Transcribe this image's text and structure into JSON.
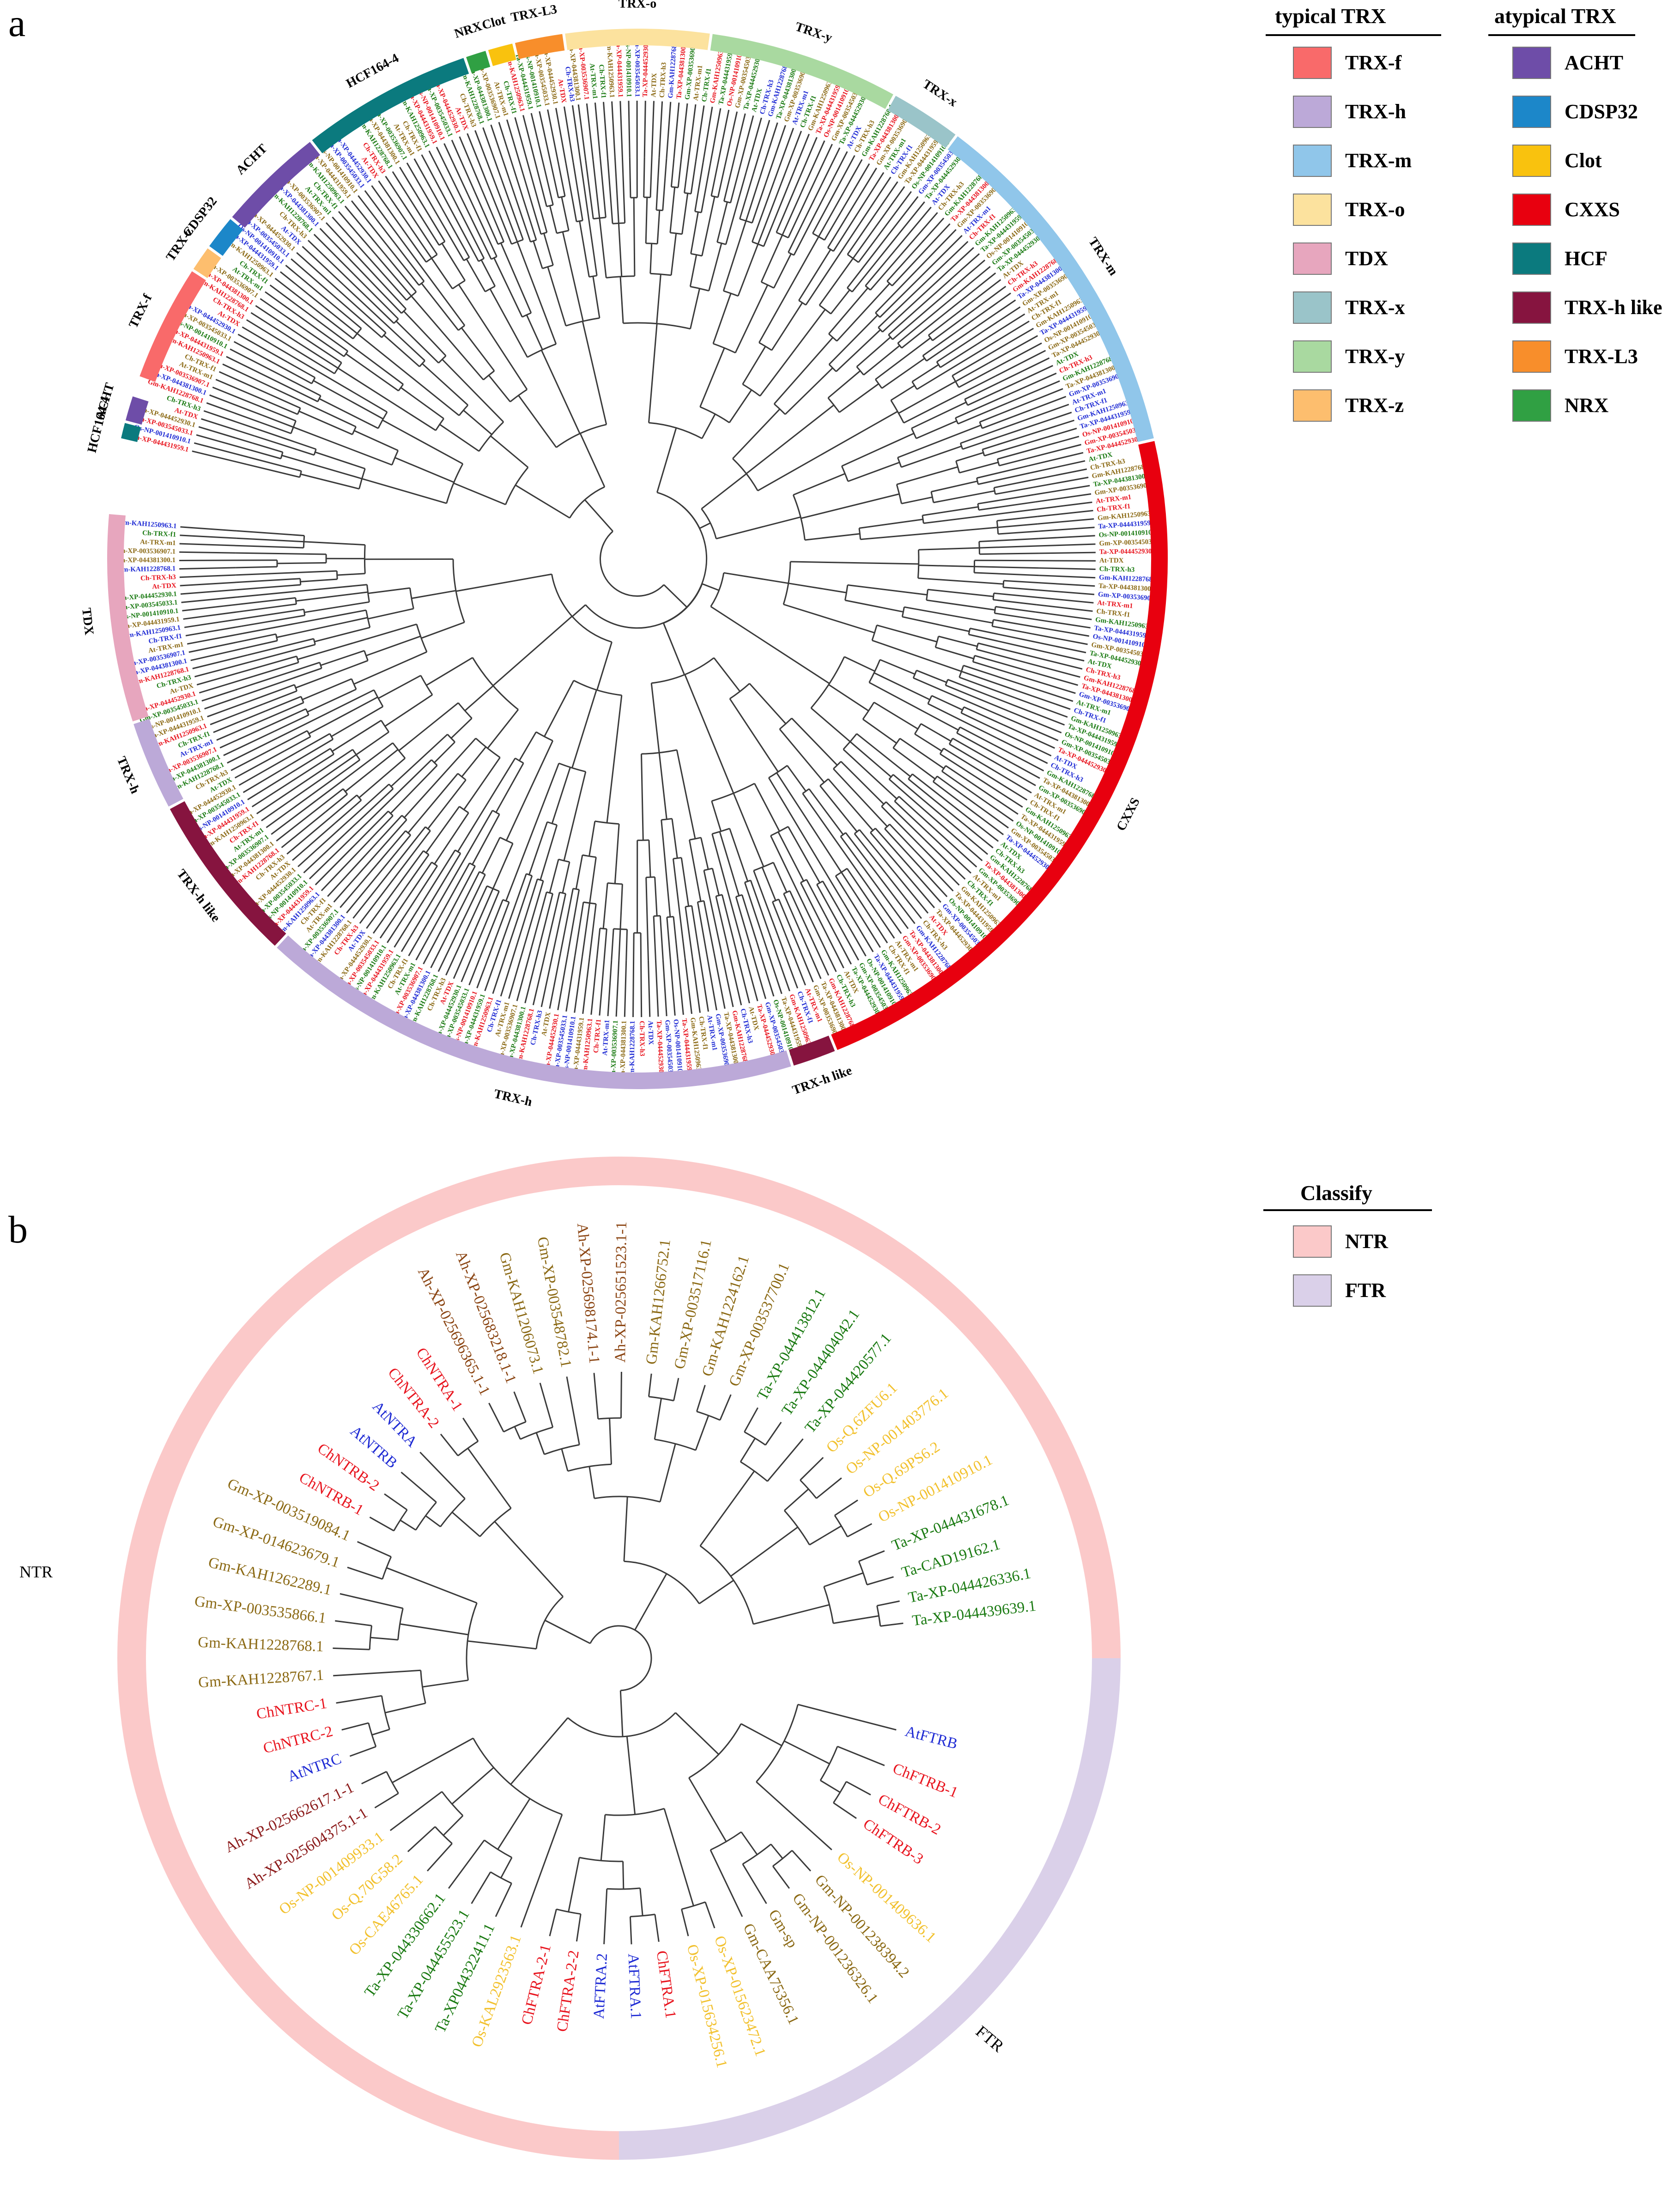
{
  "panels": {
    "a": {
      "letter": "a",
      "legend": {
        "typical": {
          "title": "typical TRX",
          "items": [
            {
              "label": "TRX-f",
              "color": "#F96A6A"
            },
            {
              "label": "TRX-h",
              "color": "#BCA9D8"
            },
            {
              "label": "TRX-m",
              "color": "#90C6EA"
            },
            {
              "label": "TRX-o",
              "color": "#FCE29E"
            },
            {
              "label": "TDX",
              "color": "#E7A6BE"
            },
            {
              "label": "TRX-x",
              "color": "#9AC4C9"
            },
            {
              "label": "TRX-y",
              "color": "#A9D9A0"
            },
            {
              "label": "TRX-z",
              "color": "#FDBE6E"
            }
          ]
        },
        "atypical": {
          "title": "atypical TRX",
          "items": [
            {
              "label": "ACHT",
              "color": "#6E4DA8"
            },
            {
              "label": "CDSP32",
              "color": "#1C87C9"
            },
            {
              "label": "Clot",
              "color": "#F9C20E"
            },
            {
              "label": "CXXS",
              "color": "#E8000F"
            },
            {
              "label": "HCF",
              "color": "#0B7A7E"
            },
            {
              "label": "TRX-h like",
              "color": "#86143F"
            },
            {
              "label": "TRX-L3",
              "color": "#F88E2B"
            },
            {
              "label": "NRX",
              "color": "#30A043"
            }
          ]
        }
      },
      "ring": [
        {
          "label": "TRX-o",
          "start": -8,
          "end": 8,
          "color": "#FCE29E"
        },
        {
          "label": "TRX-y",
          "start": 8,
          "end": 29,
          "color": "#A9D9A0"
        },
        {
          "label": "TRX-x",
          "start": 29,
          "end": 37,
          "color": "#9AC4C9"
        },
        {
          "label": "TRX-m",
          "start": 37,
          "end": 77,
          "color": "#90C6EA"
        },
        {
          "label": "CXXS",
          "start": 77,
          "end": 158,
          "color": "#E8000F"
        },
        {
          "label": "TRX-h like",
          "start": 158,
          "end": 163,
          "color": "#86143F"
        },
        {
          "label": "TRX-h",
          "start": 163,
          "end": 223,
          "color": "#BCA9D8"
        },
        {
          "label": "TRX-h like",
          "start": 223,
          "end": 242,
          "color": "#86143F"
        },
        {
          "label": "TRX-h",
          "start": 242,
          "end": 252,
          "color": "#BCA9D8"
        },
        {
          "label": "TDX",
          "start": 252,
          "end": 275,
          "color": "#E7A6BE"
        },
        {
          "label": "HCF164-4",
          "start": 283,
          "end": 285,
          "color": "#0B7A7E"
        },
        {
          "label": "ACHT",
          "start": 285,
          "end": 288,
          "color": "#6E4DA8"
        },
        {
          "label": "TRX-f",
          "start": 290,
          "end": 303,
          "color": "#F96A6A"
        },
        {
          "label": "TRX-z",
          "start": 303,
          "end": 306,
          "color": "#FDBE6E"
        },
        {
          "label": "CDSP32",
          "start": 306,
          "end": 310,
          "color": "#1C87C9"
        },
        {
          "label": "ACHT",
          "start": 310,
          "end": 322,
          "color": "#6E4DA8"
        },
        {
          "label": "HCF164-4",
          "start": 322,
          "end": 341,
          "color": "#0B7A7E"
        },
        {
          "label": "NRX",
          "start": 341,
          "end": 343.5,
          "color": "#30A043"
        },
        {
          "label": "Clot",
          "start": 343.5,
          "end": 346.5,
          "color": "#F9C20E"
        },
        {
          "label": "TRX-L3",
          "start": 346.5,
          "end": 352,
          "color": "#F88E2B"
        }
      ],
      "leaf_names": [
        "Ta-XP-044381300.1",
        "Gm-XP-003536907.1",
        "At-TRX-m1",
        "Ch-TRX-f1",
        "Gm-KAH1250963.1",
        "Ta-XP-044431959.1",
        "Os-NP-001410910.1",
        "Gm-XP-003545033.1",
        "Ta-XP-044452930.1",
        "At-TDX",
        "Ch-TRX-h3",
        "Gm-KAH1228768.1"
      ]
    },
    "b": {
      "letter": "b",
      "legend": {
        "title": "Classify",
        "items": [
          {
            "label": "NTR",
            "color": "#FBC9C9"
          },
          {
            "label": "FTR",
            "color": "#DAD0E9"
          }
        ]
      },
      "ring": [
        {
          "label": "NTR",
          "start": -180,
          "end": 90,
          "color": "#FBC9C9"
        },
        {
          "label": "FTR",
          "start": 90,
          "end": 180,
          "color": "#DAD0E9"
        }
      ],
      "leaves": [
        {
          "name": "Ta-XP-044439639.1",
          "angle": 83,
          "color": "#1A7A12"
        },
        {
          "name": "Ta-XP-044426336.1",
          "angle": 78.5,
          "color": "#1A7A12"
        },
        {
          "name": "Ta-CAD19162.1",
          "angle": 73.5,
          "color": "#1A7A12"
        },
        {
          "name": "Ta-XP-044431678.1",
          "angle": 68,
          "color": "#1A7A12"
        },
        {
          "name": "Os-NP-001410910.1",
          "angle": 62,
          "color": "#F2C12E"
        },
        {
          "name": "Os-Q.69PS6.2",
          "angle": 56.5,
          "color": "#F2C12E"
        },
        {
          "name": "Os-NP-001403776.1",
          "angle": 51,
          "color": "#F2C12E"
        },
        {
          "name": "Os-Q.6ZFU6.1",
          "angle": 45.5,
          "color": "#F2C12E"
        },
        {
          "name": "Ta-XP-044420577.1",
          "angle": 40,
          "color": "#1A7A12"
        },
        {
          "name": "Ta-XP-044404042.1",
          "angle": 34.5,
          "color": "#1A7A12"
        },
        {
          "name": "Ta-XP-044413812.1",
          "angle": 29,
          "color": "#1A7A12"
        },
        {
          "name": "Gm-XP-003537700.1",
          "angle": 23,
          "color": "#8B6914"
        },
        {
          "name": "Gm-KAH1224162.1",
          "angle": 17.5,
          "color": "#8B6914"
        },
        {
          "name": "Gm-XP-003517116.1",
          "angle": 12,
          "color": "#8B6914"
        },
        {
          "name": "Gm-KAH1266752.1",
          "angle": 6.5,
          "color": "#8B6914"
        },
        {
          "name": "Ah-XP-025651523.1-1",
          "angle": 0.5,
          "color": "#8B4513"
        },
        {
          "name": "Ah-XP-025698174.1-1",
          "angle": -5,
          "color": "#8B4513"
        },
        {
          "name": "Gm-XP-003548782.1",
          "angle": -10.5,
          "color": "#8B6914"
        },
        {
          "name": "Gm-KAH1206073.1",
          "angle": -16,
          "color": "#8B6914"
        },
        {
          "name": "Ah-XP-025683218.1-1",
          "angle": -21.5,
          "color": "#8B4513"
        },
        {
          "name": "Ah-XP-025696365.1-1",
          "angle": -27,
          "color": "#8B4513"
        },
        {
          "name": "ChNTRA-1",
          "angle": -33,
          "color": "#E8141E"
        },
        {
          "name": "ChNTRA-2",
          "angle": -38.5,
          "color": "#E8141E"
        },
        {
          "name": "AtNTRA",
          "angle": -44,
          "color": "#1F2BD4"
        },
        {
          "name": "AtNTRB",
          "angle": -49.5,
          "color": "#1F2BD4"
        },
        {
          "name": "ChNTRB-2",
          "angle": -55,
          "color": "#E8141E"
        },
        {
          "name": "ChNTRB-1",
          "angle": -60.5,
          "color": "#E8141E"
        },
        {
          "name": "Gm-XP-003519084.1",
          "angle": -66,
          "color": "#8B6914"
        },
        {
          "name": "Gm-XP-014623679.1",
          "angle": -71.5,
          "color": "#8B6914"
        },
        {
          "name": "Gm-KAH1262289.1",
          "angle": -77,
          "color": "#8B6914"
        },
        {
          "name": "Gm-XP-003535866.1",
          "angle": -82.5,
          "color": "#8B6914"
        },
        {
          "name": "Gm-KAH1228768.1",
          "angle": -88,
          "color": "#8B6914"
        },
        {
          "name": "Gm-KAH1228767.1",
          "angle": -93.5,
          "color": "#8B6914"
        },
        {
          "name": "ChNTRC-1",
          "angle": -99,
          "color": "#E8141E"
        },
        {
          "name": "ChNTRC-2",
          "angle": -104.5,
          "color": "#E8141E"
        },
        {
          "name": "AtNTRC",
          "angle": -110,
          "color": "#1F2BD4"
        },
        {
          "name": "Ah-XP-025662617.1-1",
          "angle": -116,
          "color": "#8B1A1A"
        },
        {
          "name": "Ah-XP-025604375.1-1",
          "angle": -121.5,
          "color": "#8B1A1A"
        },
        {
          "name": "Os-NP-001409933.1",
          "angle": -127,
          "color": "#F2C12E"
        },
        {
          "name": "Os-Q.70G58.2",
          "angle": -132.5,
          "color": "#F2C12E"
        },
        {
          "name": "Os-CAE46765.1",
          "angle": -138,
          "color": "#F2C12E"
        },
        {
          "name": "Ta-XP-044330662.1",
          "angle": -143.5,
          "color": "#1A7A12"
        },
        {
          "name": "Ta-XP-044455523.1",
          "angle": -149,
          "color": "#1A7A12"
        },
        {
          "name": "Ta-XP044322411.1",
          "angle": -154.5,
          "color": "#1A7A12"
        },
        {
          "name": "Os-KAL2923563.1",
          "angle": -160,
          "color": "#F2C12E"
        },
        {
          "name": "ChFTRA-2-1",
          "angle": -166,
          "color": "#E8141E"
        },
        {
          "name": "ChFTRA-2-2",
          "angle": -171.5,
          "color": "#E8141E"
        },
        {
          "name": "AtFTRA.2",
          "angle": -177,
          "color": "#1F2BD4"
        },
        {
          "name": "AtFTRA.1",
          "angle": 177.5,
          "color": "#1F2BD4"
        },
        {
          "name": "ChFTRA.1",
          "angle": 172,
          "color": "#E8141E"
        },
        {
          "name": "Os-XP-015634256.1",
          "angle": 166,
          "color": "#F2C12E"
        },
        {
          "name": "Os-XP-015623472.1",
          "angle": 160.5,
          "color": "#F2C12E"
        },
        {
          "name": "Gm-CAA75356.1",
          "angle": 154.5,
          "color": "#8B6914"
        },
        {
          "name": "Gm-sp",
          "angle": 149,
          "color": "#8B6914"
        },
        {
          "name": "Gm-NP-001236326.1",
          "angle": 143.5,
          "color": "#8B6914"
        },
        {
          "name": "Gm-NP-001238394.2",
          "angle": 138,
          "color": "#8B6914"
        },
        {
          "name": "Os-NP-001409636.1",
          "angle": 132,
          "color": "#F2C12E"
        },
        {
          "name": "ChFTRB-3",
          "angle": 124,
          "color": "#E8141E"
        },
        {
          "name": "ChFTRB-2",
          "angle": 118.5,
          "color": "#E8141E"
        },
        {
          "name": "ChFTRB-1",
          "angle": 112,
          "color": "#E8141E"
        },
        {
          "name": "AtFTRB",
          "angle": 104.5,
          "color": "#1F2BD4"
        }
      ]
    }
  }
}
